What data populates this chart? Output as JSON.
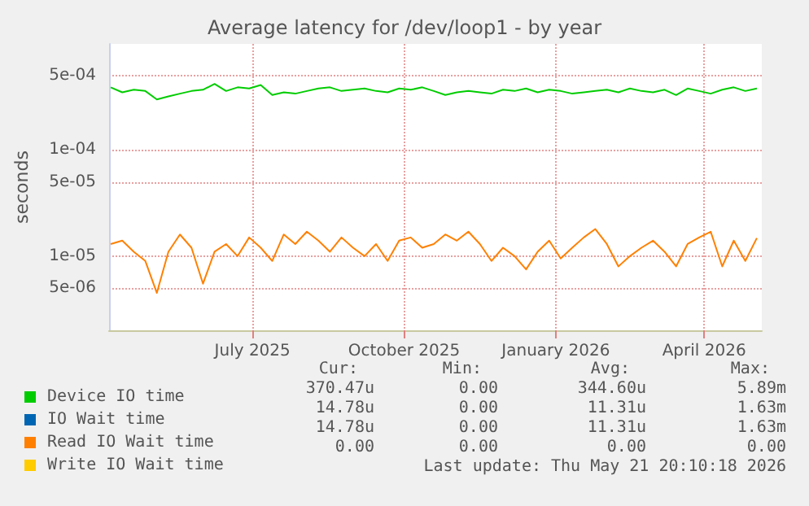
{
  "chart_data": {
    "type": "line",
    "title": "Average latency for /dev/loop1 - by year",
    "ylabel": "seconds",
    "x": [
      "2025-04-21",
      "2025-04-28",
      "2025-05-05",
      "2025-05-12",
      "2025-05-19",
      "2025-05-26",
      "2025-06-02",
      "2025-06-09",
      "2025-06-16",
      "2025-06-23",
      "2025-06-30",
      "2025-07-07",
      "2025-07-14",
      "2025-07-21",
      "2025-07-28",
      "2025-08-04",
      "2025-08-11",
      "2025-08-18",
      "2025-08-25",
      "2025-09-01",
      "2025-09-08",
      "2025-09-15",
      "2025-09-22",
      "2025-09-29",
      "2025-10-06",
      "2025-10-13",
      "2025-10-20",
      "2025-10-27",
      "2025-11-03",
      "2025-11-10",
      "2025-11-17",
      "2025-11-24",
      "2025-12-01",
      "2025-12-08",
      "2025-12-15",
      "2025-12-22",
      "2025-12-29",
      "2026-01-05",
      "2026-01-12",
      "2026-01-19",
      "2026-01-26",
      "2026-02-02",
      "2026-02-09",
      "2026-02-16",
      "2026-02-23",
      "2026-03-02",
      "2026-03-09",
      "2026-03-16",
      "2026-03-23",
      "2026-03-30",
      "2026-04-06",
      "2026-04-13",
      "2026-04-20",
      "2026-04-27",
      "2026-05-04",
      "2026-05-11",
      "2026-05-18"
    ],
    "series": [
      {
        "name": "Device IO time",
        "color": "#00cc00",
        "values": [
          0.00039,
          0.00035,
          0.00037,
          0.00036,
          0.0003,
          0.00032,
          0.00034,
          0.00036,
          0.00037,
          0.00042,
          0.00036,
          0.00039,
          0.00038,
          0.00041,
          0.00033,
          0.00035,
          0.00034,
          0.00036,
          0.00038,
          0.00039,
          0.00036,
          0.00037,
          0.00038,
          0.00036,
          0.00035,
          0.00038,
          0.00037,
          0.00039,
          0.00036,
          0.00033,
          0.00035,
          0.00036,
          0.00035,
          0.00034,
          0.00037,
          0.00036,
          0.00038,
          0.00035,
          0.00037,
          0.00036,
          0.00034,
          0.00035,
          0.00036,
          0.00037,
          0.00035,
          0.00038,
          0.00036,
          0.00035,
          0.00037,
          0.00033,
          0.00038,
          0.00036,
          0.00034,
          0.00037,
          0.00039,
          0.00036,
          0.00038
        ]
      },
      {
        "name": "IO Wait time",
        "color": "#0066b3",
        "values": [
          null,
          null,
          null,
          null,
          null,
          null,
          null,
          null,
          null,
          null,
          null,
          null,
          null,
          null,
          null,
          null,
          null,
          null,
          null,
          null,
          null,
          null,
          null,
          null,
          null,
          null,
          null,
          null,
          null,
          null,
          null,
          null,
          null,
          null,
          null,
          null,
          null,
          null,
          null,
          null,
          null,
          null,
          null,
          null,
          null,
          null,
          null,
          null,
          null,
          null,
          null,
          null,
          null,
          null,
          null,
          null,
          null
        ]
      },
      {
        "name": "Read IO Wait time",
        "color": "#ff8000",
        "values": [
          1.3e-05,
          1.4e-05,
          1.1e-05,
          9e-06,
          4.5e-06,
          1.1e-05,
          1.6e-05,
          1.2e-05,
          5.5e-06,
          1.1e-05,
          1.3e-05,
          1e-05,
          1.5e-05,
          1.2e-05,
          9e-06,
          1.6e-05,
          1.3e-05,
          1.7e-05,
          1.4e-05,
          1.1e-05,
          1.5e-05,
          1.2e-05,
          1e-05,
          1.3e-05,
          9e-06,
          1.4e-05,
          1.5e-05,
          1.2e-05,
          1.3e-05,
          1.6e-05,
          1.4e-05,
          1.7e-05,
          1.3e-05,
          9e-06,
          1.2e-05,
          1e-05,
          7.5e-06,
          1.1e-05,
          1.4e-05,
          9.5e-06,
          1.2e-05,
          1.5e-05,
          1.8e-05,
          1.3e-05,
          8e-06,
          1e-05,
          1.2e-05,
          1.4e-05,
          1.1e-05,
          8e-06,
          1.3e-05,
          1.5e-05,
          1.7e-05,
          8e-06,
          1.4e-05,
          9e-06,
          1.48e-05
        ]
      },
      {
        "name": "Write IO Wait time",
        "color": "#ffcc00",
        "values": [
          null,
          null,
          null,
          null,
          null,
          null,
          null,
          null,
          null,
          null,
          null,
          null,
          null,
          null,
          null,
          null,
          null,
          null,
          null,
          null,
          null,
          null,
          null,
          null,
          null,
          null,
          null,
          null,
          null,
          null,
          null,
          null,
          null,
          null,
          null,
          null,
          null,
          null,
          null,
          null,
          null,
          null,
          null,
          null,
          null,
          null,
          null,
          null,
          null,
          null,
          null,
          null,
          null,
          null,
          null,
          null,
          null
        ]
      }
    ],
    "log": "y",
    "xlim": [
      "2025-04-20",
      "2026-05-21"
    ],
    "xticks": [
      {
        "value": "2025-07-16",
        "label": "July 2025"
      },
      {
        "value": "2025-10-16",
        "label": "October 2025"
      },
      {
        "value": "2026-01-16",
        "label": "January 2026"
      },
      {
        "value": "2026-04-16",
        "label": "April 2026"
      }
    ],
    "ylim": [
      2e-06,
      0.001
    ],
    "yticks": [
      {
        "value": 5e-06,
        "label": "5e-06"
      },
      {
        "value": 1e-05,
        "label": "1e-05"
      },
      {
        "value": 5e-05,
        "label": "5e-05"
      },
      {
        "value": 0.0001,
        "label": "1e-04"
      },
      {
        "value": 0.0005,
        "label": "5e-04"
      }
    ],
    "grid": true,
    "legend": "bottom",
    "marker": "none",
    "line_style": "solid",
    "annotations": [
      "Cur:",
      "Min:",
      "Avg:",
      "Max:",
      "370.47u",
      "0.00",
      "344.60u",
      "5.89m",
      "14.78u",
      "0.00",
      "11.31u",
      "1.63m",
      "14.78u",
      "0.00",
      "11.31u",
      "1.63m",
      "0.00",
      "0.00",
      "0.00",
      "0.00",
      "Last update: Thu May 21 20:10:18 2026"
    ]
  }
}
